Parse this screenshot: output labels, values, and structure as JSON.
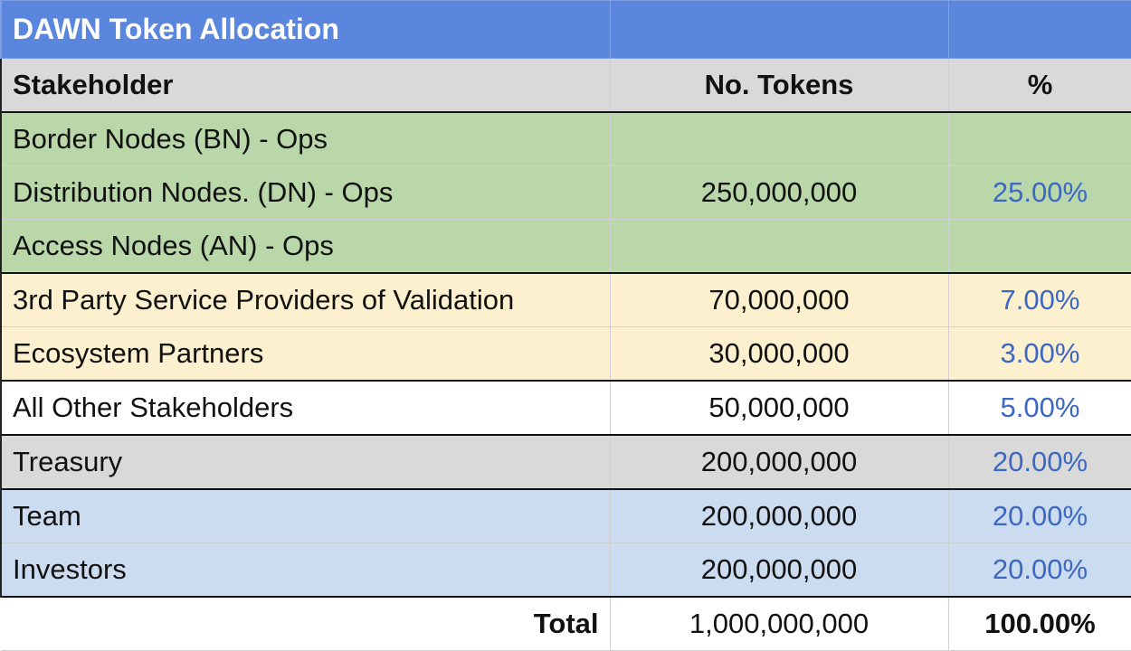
{
  "title": "DAWN Token Allocation",
  "headers": {
    "stakeholder": "Stakeholder",
    "tokens": "No. Tokens",
    "percent": "%"
  },
  "colors": {
    "title_bg": "#5a86dd",
    "ops_group": "#b9d7a8",
    "partners_group": "#fdf0cf",
    "treasury": "#d9d9d9",
    "team_investors": "#ccdcf0",
    "percent_text": "#3d68c2"
  },
  "rows": [
    {
      "stakeholder": "Border Nodes (BN) - Ops",
      "tokens": "",
      "percent": ""
    },
    {
      "stakeholder": "Distribution Nodes. (DN) - Ops",
      "tokens": "250,000,000",
      "percent": "25.00%"
    },
    {
      "stakeholder": "Access Nodes (AN) - Ops",
      "tokens": "",
      "percent": ""
    },
    {
      "stakeholder": "3rd Party Service Providers of Validation",
      "tokens": "70,000,000",
      "percent": "7.00%"
    },
    {
      "stakeholder": "Ecosystem Partners",
      "tokens": "30,000,000",
      "percent": "3.00%"
    },
    {
      "stakeholder": "All Other Stakeholders",
      "tokens": "50,000,000",
      "percent": "5.00%"
    },
    {
      "stakeholder": "Treasury",
      "tokens": "200,000,000",
      "percent": "20.00%"
    },
    {
      "stakeholder": "Team",
      "tokens": "200,000,000",
      "percent": "20.00%"
    },
    {
      "stakeholder": "Investors",
      "tokens": "200,000,000",
      "percent": "20.00%"
    }
  ],
  "total": {
    "label": "Total",
    "tokens": "1,000,000,000",
    "percent": "100.00%"
  }
}
